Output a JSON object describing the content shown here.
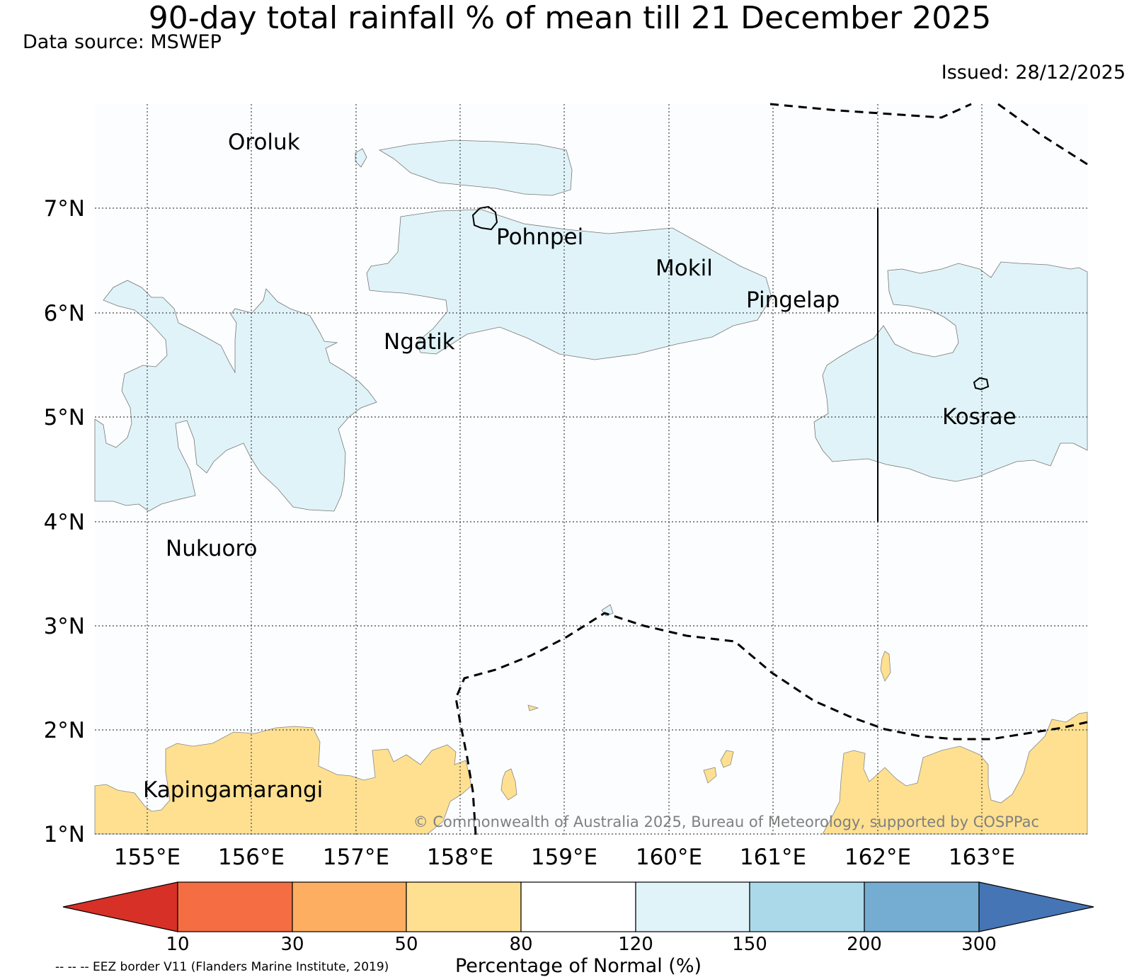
{
  "title": "90-day total rainfall % of mean till 21 December 2025",
  "data_source": "Data source: MSWEP",
  "issued": "Issued: 28/12/2025",
  "copyright": "© Commonwealth of Australia 2025, Bureau of Meteorology, supported by COSPPac",
  "eez_note": "-- -- -- EEZ border V11 (Flanders Marine Institute, 2019)",
  "axes": {
    "lat_labels": [
      "7°N",
      "6°N",
      "5°N",
      "4°N",
      "3°N",
      "2°N",
      "1°N"
    ],
    "lon_labels": [
      "155°E",
      "156°E",
      "157°E",
      "158°E",
      "159°E",
      "160°E",
      "161°E",
      "162°E",
      "163°E"
    ]
  },
  "places": [
    "Oroluk",
    "Pohnpei",
    "Mokil",
    "Pingelap",
    "Ngatik",
    "Kosrae",
    "Nukuoro",
    "Kapingamarangi"
  ],
  "colorbar": {
    "label": "Percentage of Normal (%)",
    "ticks": [
      "10",
      "30",
      "50",
      "80",
      "120",
      "150",
      "200",
      "300"
    ],
    "colors": {
      "lt10": "#d73027",
      "c10_30": "#f46d43",
      "c30_50": "#fdae61",
      "c50_80": "#fee090",
      "c80_120": "#ffffff",
      "c120_150": "#e0f3f8",
      "c150_200": "#abd9e9",
      "c200_300": "#74add1",
      "gt300": "#4575b4"
    }
  }
}
